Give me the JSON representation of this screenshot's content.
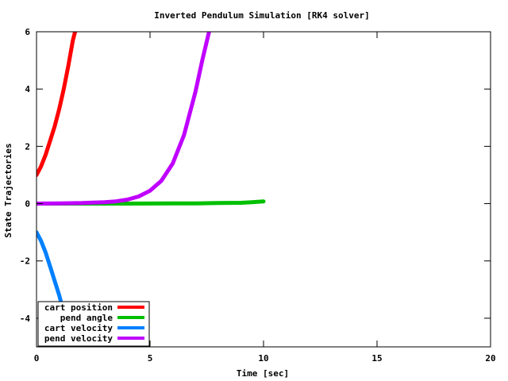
{
  "chart_data": {
    "type": "line",
    "title": "Inverted Pendulum Simulation [RK4 solver]",
    "xlabel": "Time [sec]",
    "ylabel": "State Trajectories",
    "xlim": [
      0,
      20
    ],
    "ylim": [
      -5,
      6
    ],
    "xticks": [
      0,
      5,
      10,
      15,
      20
    ],
    "yticks": [
      -4,
      -2,
      0,
      2,
      4,
      6
    ],
    "grid": false,
    "legend_position": "bottom-left",
    "series": [
      {
        "name": "cart position",
        "color": "#ff0000",
        "x": [
          0,
          0.2,
          0.4,
          0.6,
          0.8,
          1.0,
          1.2,
          1.4,
          1.6,
          1.7
        ],
        "y": [
          1.0,
          1.3,
          1.7,
          2.2,
          2.7,
          3.3,
          4.0,
          4.8,
          5.7,
          6.0
        ]
      },
      {
        "name": "pend angle",
        "color": "#00c000",
        "x": [
          0,
          2,
          4,
          6,
          7,
          8,
          9,
          9.5,
          10
        ],
        "y": [
          0.0,
          0.0,
          0.0,
          0.01,
          0.01,
          0.02,
          0.03,
          0.05,
          0.08
        ]
      },
      {
        "name": "cart velocity",
        "color": "#0080ff",
        "x": [
          0,
          0.2,
          0.4,
          0.6,
          0.8,
          1.0,
          1.2,
          1.4,
          1.6
        ],
        "y": [
          -1.0,
          -1.3,
          -1.7,
          -2.2,
          -2.7,
          -3.2,
          -3.8,
          -4.4,
          -5.0
        ]
      },
      {
        "name": "pend velocity",
        "color": "#c000ff",
        "x": [
          0,
          1,
          2,
          3,
          3.5,
          4,
          4.5,
          5,
          5.5,
          6,
          6.5,
          7,
          7.3,
          7.6
        ],
        "y": [
          0.0,
          0.01,
          0.02,
          0.05,
          0.08,
          0.14,
          0.25,
          0.45,
          0.8,
          1.4,
          2.4,
          3.9,
          5.0,
          6.0
        ]
      }
    ]
  }
}
